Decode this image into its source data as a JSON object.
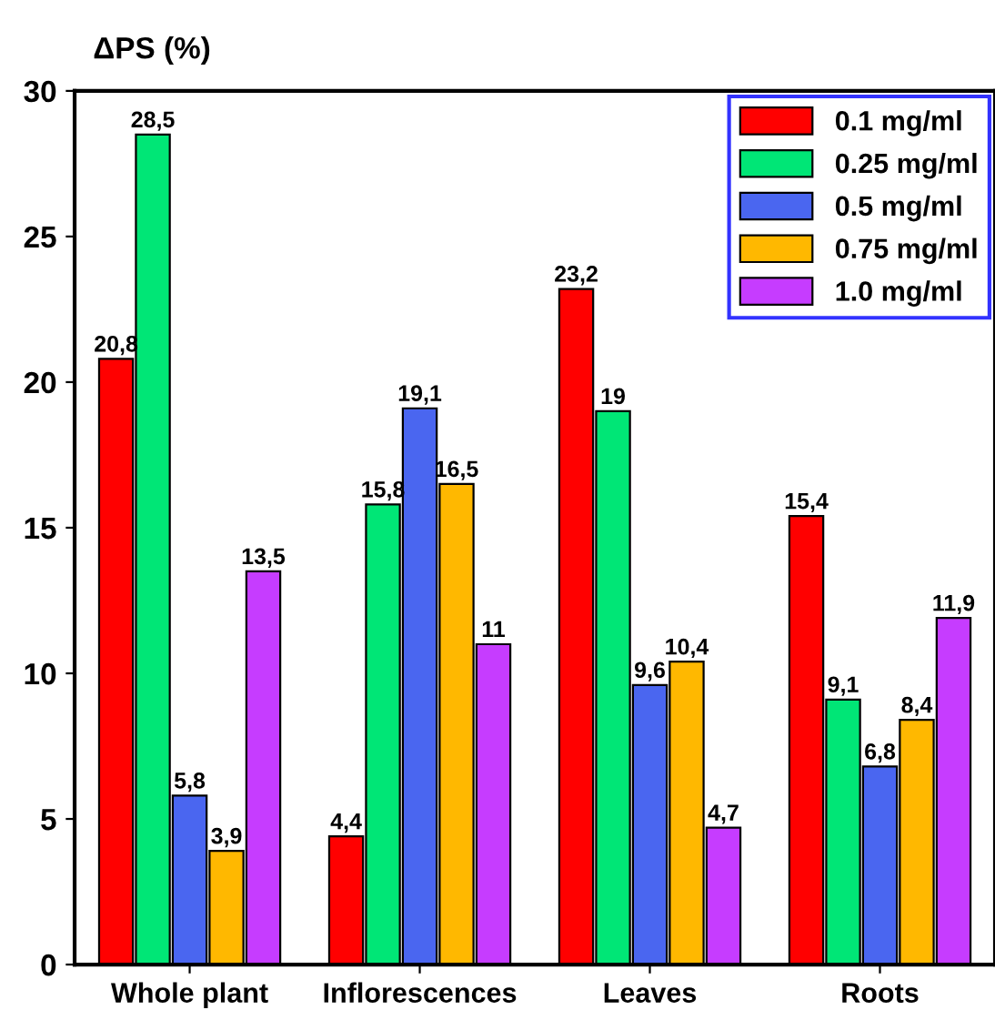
{
  "chart_data": {
    "type": "bar",
    "ylabel": "ΔPS (%)",
    "categories": [
      "Whole plant",
      "Inflorescences",
      "Leaves",
      "Roots"
    ],
    "series": [
      {
        "name": "0.1 mg/ml",
        "color": "#ff0000",
        "values": [
          20.8,
          4.4,
          23.2,
          15.4
        ],
        "value_labels": [
          "20,8",
          "4,4",
          "23,2",
          "15,4"
        ]
      },
      {
        "name": "0.25 mg/ml",
        "color": "#00e676",
        "values": [
          28.5,
          15.8,
          19,
          9.1
        ],
        "value_labels": [
          "28,5",
          "15,8",
          "19",
          "9,1"
        ]
      },
      {
        "name": "0.5 mg/ml",
        "color": "#4a66f0",
        "values": [
          5.8,
          19.1,
          9.6,
          6.8
        ],
        "value_labels": [
          "5,8",
          "19,1",
          "9,6",
          "6,8"
        ]
      },
      {
        "name": "0.75 mg/ml",
        "color": "#ffb800",
        "values": [
          3.9,
          16.5,
          10.4,
          8.4
        ],
        "value_labels": [
          "3,9",
          "16,5",
          "10,4",
          "8,4"
        ]
      },
      {
        "name": "1.0 mg/ml",
        "color": "#c63cff",
        "values": [
          13.5,
          11,
          4.7,
          11.9
        ],
        "value_labels": [
          "13,5",
          "11",
          "4,7",
          "11,9"
        ]
      }
    ],
    "ylim": [
      0,
      30
    ],
    "yticks": [
      0,
      5,
      10,
      15,
      20,
      25,
      30
    ],
    "grid": false,
    "legend": "top right"
  }
}
